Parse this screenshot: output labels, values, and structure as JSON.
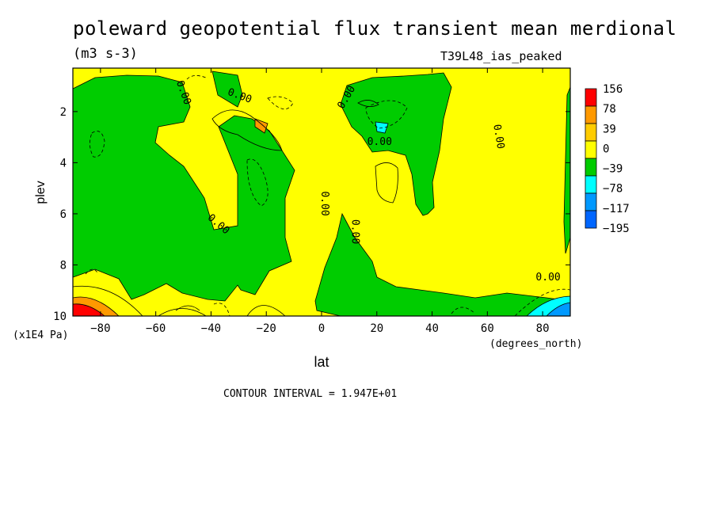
{
  "header": {
    "title": "poleward geopotential flux transient mean merdional",
    "units": "(m3 s-3)",
    "run_label": "T39L48_ias_peaked"
  },
  "footer": {
    "contour_interval": "CONTOUR INTERVAL = 1.947E+01"
  },
  "colors": {
    "c156": "#ff0000",
    "c78": "#ff9900",
    "c39": "#ffff00",
    "c0": "#00cc00",
    "cm39": "#00ffff",
    "cm78": "#0099ff",
    "cm117": "#0066ff",
    "frame": "#000000"
  },
  "chart_data": {
    "type": "contour",
    "x": {
      "label": "lat",
      "unit": "(degrees_north)",
      "range": [
        -90,
        90
      ],
      "ticks": [
        -80,
        -60,
        -40,
        -20,
        0,
        20,
        40,
        60,
        80
      ]
    },
    "y": {
      "label": "plev",
      "unit": "(x1E4 Pa)",
      "range": [
        10,
        0.3
      ],
      "inverted": true,
      "ticks": [
        2,
        4,
        6,
        8,
        10
      ]
    },
    "colorbar": {
      "levels": [
        "156",
        "78",
        "39",
        "0",
        "-39",
        "-78",
        "-117",
        "-195"
      ],
      "colors": [
        "#ff0000",
        "#ff9900",
        "#ffcc00",
        "#ffff00",
        "#00cc00",
        "#00ffff",
        "#0099ff",
        "#0066ff"
      ]
    },
    "contour_labels": [
      {
        "text": "0.00",
        "lat": -51,
        "plev": 1.3,
        "rot": 70
      },
      {
        "text": "0.00",
        "lat": -30,
        "plev": 1.5,
        "rot": 20
      },
      {
        "text": "0.00",
        "lat": 10,
        "plev": 1.5,
        "rot": -60
      },
      {
        "text": "0.00",
        "lat": 63,
        "plev": 3.0,
        "rot": 80
      },
      {
        "text": "0.00",
        "lat": 21,
        "plev": 3.3,
        "rot": 0
      },
      {
        "text": "0.00",
        "lat": 0,
        "plev": 5.6,
        "rot": 90
      },
      {
        "text": "0.00",
        "lat": 11,
        "plev": 6.7,
        "rot": 90
      },
      {
        "text": "0.00",
        "lat": -38,
        "plev": 6.5,
        "rot": 40
      },
      {
        "text": "0.00",
        "lat": 82,
        "plev": 8.6,
        "rot": 0
      }
    ]
  }
}
